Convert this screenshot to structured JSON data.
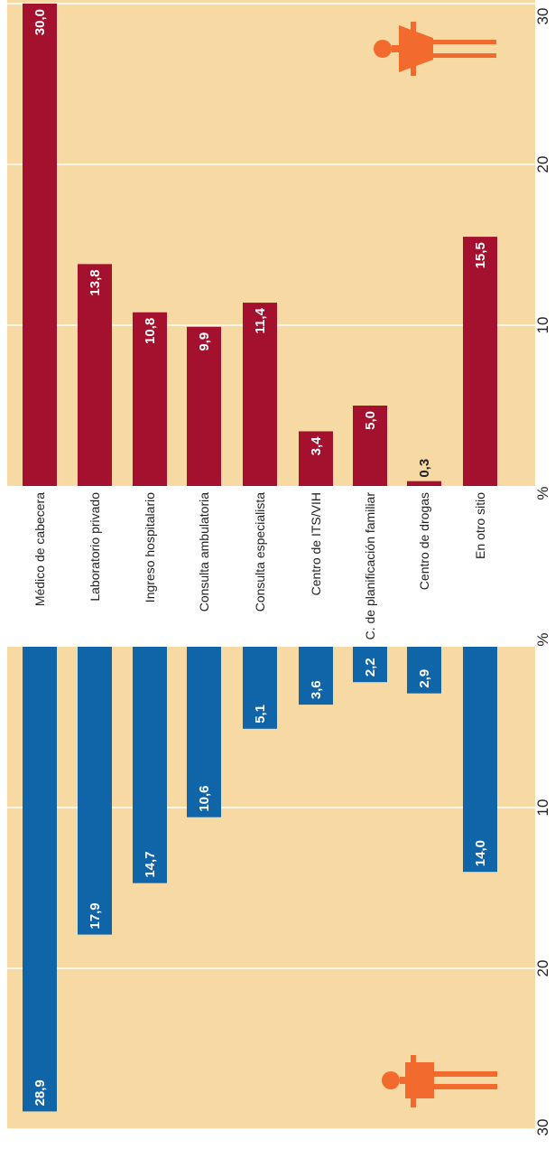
{
  "chart_data": {
    "type": "bar",
    "orientation": "horizontal-butterfly",
    "title": "",
    "axis_unit": "%",
    "xlim": [
      0,
      30
    ],
    "ticks": [
      "10",
      "20",
      "30"
    ],
    "grid": true,
    "categories": [
      "Médico de cabecera",
      "Laboratorio privado",
      "Ingreso hospitalario",
      "Consulta ambulatoria",
      "Consulta especialista",
      "Centro de ITS/VIH",
      "C. de planificación familiar",
      "Centro de drogas",
      "En otro sitio"
    ],
    "series": [
      {
        "values": [
          30.0,
          13.8,
          10.8,
          9.9,
          11.4,
          3.4,
          5.0,
          0.3,
          15.5
        ],
        "labels": [
          "30,0",
          "13,8",
          "10,8",
          "9,9",
          "11,4",
          "3,4",
          "5,0",
          "0,3",
          "15,5"
        ],
        "color": "#a3112e"
      },
      {
        "values": [
          28.9,
          17.9,
          14.7,
          10.6,
          5.1,
          3.6,
          2.2,
          2.9,
          14.0
        ],
        "labels": [
          "28,9",
          "17,9",
          "14,7",
          "10,6",
          "5,1",
          "3,6",
          "2,2",
          "2,9",
          "14,0"
        ],
        "color": "#1065a8"
      }
    ]
  },
  "colors": {
    "background": "#f7d9a3",
    "grid": "#ffffff",
    "icon": "#f26a2e"
  },
  "icons": [
    "female-figure-icon",
    "male-figure-icon"
  ]
}
